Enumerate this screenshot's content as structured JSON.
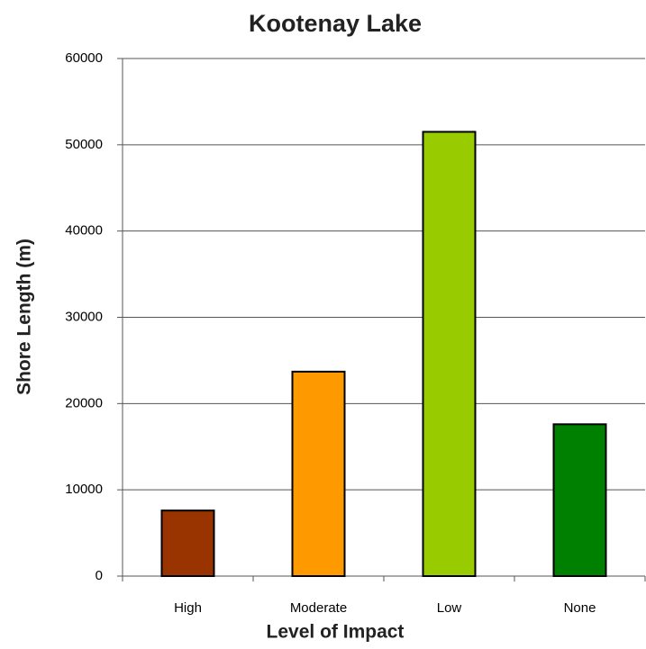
{
  "chart_data": {
    "type": "bar",
    "title": "Kootenay Lake",
    "x_label": "Level of Impact",
    "y_label": "Shore Length (m)",
    "categories": [
      "High",
      "Moderate",
      "Low",
      "None"
    ],
    "values": [
      7600,
      23700,
      51500,
      17600
    ],
    "colors": [
      "#993300",
      "#ff9900",
      "#99cc00",
      "#008000"
    ],
    "ylim": [
      0,
      60000
    ],
    "yticks": [
      0,
      10000,
      20000,
      30000,
      40000,
      50000,
      60000
    ],
    "grid": true
  }
}
